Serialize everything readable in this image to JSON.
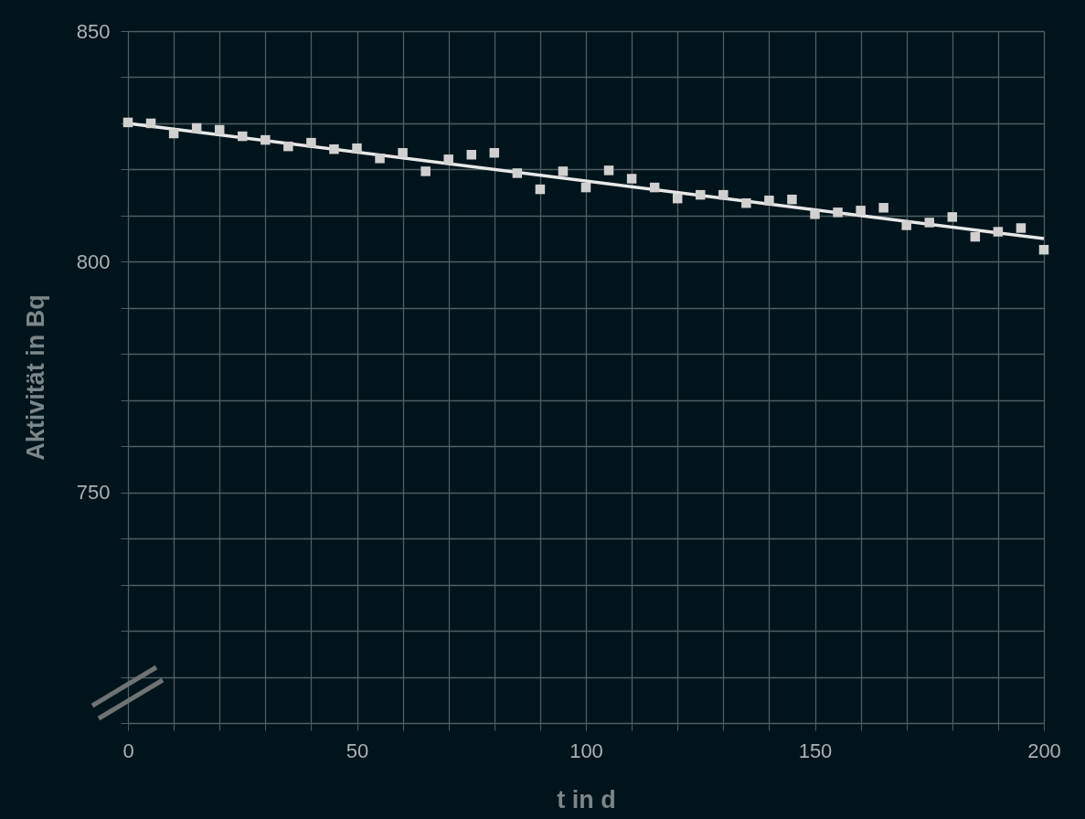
{
  "chart_data": {
    "type": "scatter",
    "xlabel": "t in d",
    "ylabel": "Aktivität in Bq",
    "xlim": [
      0,
      200
    ],
    "ylim": [
      700,
      850
    ],
    "xticks": [
      0,
      {
        "value": 10,
        "label": null
      },
      {
        "value": 20,
        "label": null
      },
      {
        "value": 30,
        "label": null
      },
      {
        "value": 40,
        "label": null
      },
      50,
      {
        "value": 60,
        "label": null
      },
      {
        "value": 70,
        "label": null
      },
      {
        "value": 80,
        "label": null
      },
      {
        "value": 90,
        "label": null
      },
      100,
      {
        "value": 110,
        "label": null
      },
      {
        "value": 120,
        "label": null
      },
      {
        "value": 130,
        "label": null
      },
      {
        "value": 140,
        "label": null
      },
      150,
      {
        "value": 160,
        "label": null
      },
      {
        "value": 170,
        "label": null
      },
      {
        "value": 180,
        "label": null
      },
      {
        "value": 190,
        "label": null
      },
      200
    ],
    "yticks": [
      {
        "value": 700,
        "label": null
      },
      {
        "value": 710,
        "label": null
      },
      {
        "value": 720,
        "label": null
      },
      {
        "value": 730,
        "label": null
      },
      {
        "value": 740,
        "label": null
      },
      750,
      {
        "value": 760,
        "label": null
      },
      {
        "value": 770,
        "label": null
      },
      {
        "value": 780,
        "label": null
      },
      {
        "value": 790,
        "label": null
      },
      800,
      {
        "value": 810,
        "label": null
      },
      {
        "value": 820,
        "label": null
      },
      {
        "value": 830,
        "label": null
      },
      {
        "value": 840,
        "label": null
      },
      850
    ],
    "grid": true,
    "series": [
      {
        "marker": "square",
        "color": "#d0d0d0",
        "x": [
          0,
          5,
          10,
          15,
          20,
          25,
          30,
          35,
          40,
          45,
          50,
          55,
          60,
          65,
          70,
          75,
          80,
          85,
          90,
          95,
          100,
          105,
          110,
          115,
          120,
          125,
          130,
          135,
          140,
          145,
          150,
          155,
          160,
          165,
          170,
          175,
          180,
          185,
          190,
          195,
          200
        ],
        "values": [
          830.2,
          830,
          827.8,
          829,
          828.6,
          827.2,
          826.4,
          825,
          825.8,
          824.4,
          824.6,
          822.4,
          823.6,
          819.6,
          822.2,
          823.2,
          823.6,
          819.2,
          815.7,
          819.6,
          816.1,
          819.8,
          818,
          816.1,
          813.7,
          814.5,
          814.5,
          812.7,
          813.3,
          813.5,
          810.3,
          810.7,
          811.1,
          811.7,
          807.9,
          808.5,
          809.7,
          805.4,
          806.5,
          807.3,
          802.6
        ]
      },
      {
        "type": "line",
        "color": "#e8e8e8",
        "x": [
          0,
          200
        ],
        "values": [
          830,
          805
        ]
      }
    ]
  }
}
